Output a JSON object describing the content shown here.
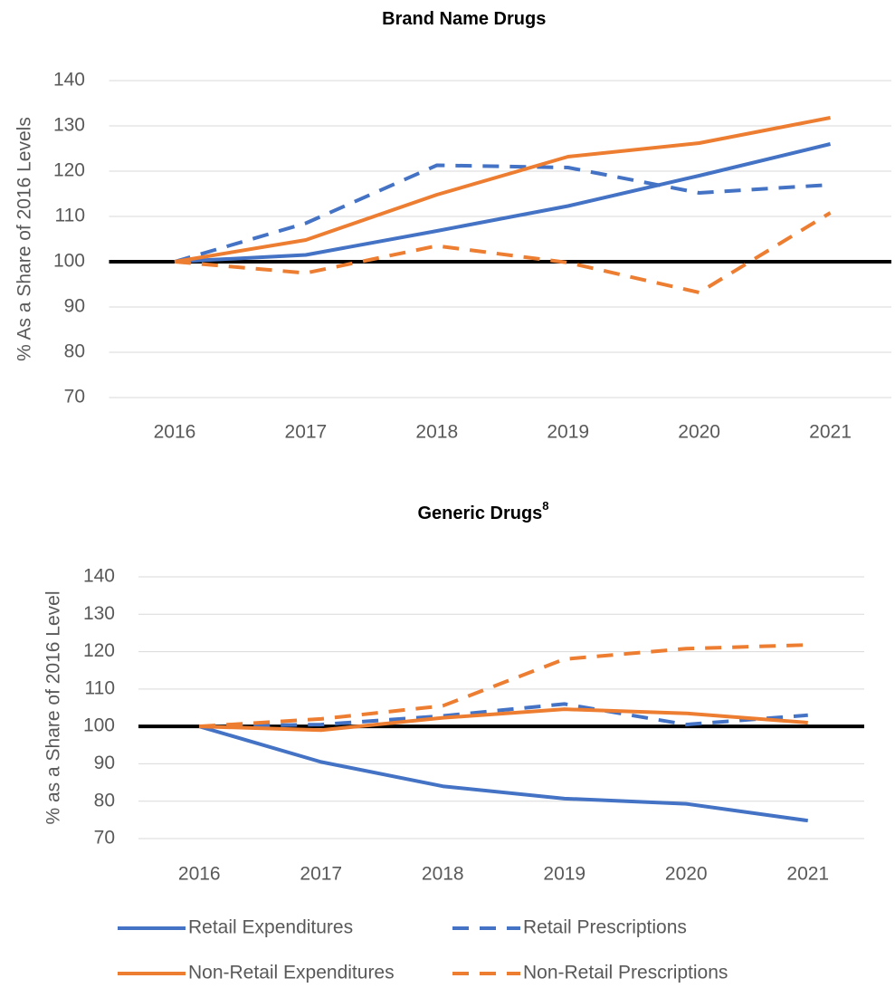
{
  "chart_data": [
    {
      "type": "line",
      "title": "Brand Name Drugs",
      "y_label": "% As a Share of 2016 Levels",
      "categories": [
        "2016",
        "2017",
        "2018",
        "2019",
        "2020",
        "2021"
      ],
      "ylim": [
        70,
        140
      ],
      "yticks": [
        70,
        80,
        90,
        100,
        110,
        120,
        130,
        140
      ],
      "grid": true,
      "reference_line": 100,
      "series": [
        {
          "color": "#4472c4",
          "dashed": false,
          "values": [
            100,
            101.5,
            106.8,
            112.3,
            119,
            126
          ]
        },
        {
          "color": "#4472c4",
          "dashed": true,
          "values": [
            100,
            108.5,
            121.3,
            120.8,
            115.2,
            117
          ]
        },
        {
          "color": "#ed7d31",
          "dashed": false,
          "values": [
            100,
            104.8,
            114.8,
            123.2,
            126.2,
            131.8
          ]
        },
        {
          "color": "#ed7d31",
          "dashed": true,
          "values": [
            100,
            97.5,
            103.5,
            99.8,
            93.2,
            110.8
          ]
        }
      ]
    },
    {
      "type": "line",
      "title": "Generic Drugs",
      "title_superscript": "8",
      "y_label": "% as a Share of 2016 Level",
      "categories": [
        "2016",
        "2017",
        "2018",
        "2019",
        "2020",
        "2021"
      ],
      "ylim": [
        70,
        140
      ],
      "yticks": [
        70,
        80,
        90,
        100,
        110,
        120,
        130,
        140
      ],
      "grid": true,
      "reference_line": 100,
      "series": [
        {
          "name": "Retail Expenditures",
          "color": "#4472c4",
          "dashed": false,
          "values": [
            100,
            90.5,
            84,
            80.7,
            79.3,
            74.8
          ]
        },
        {
          "name": "Retail Prescriptions",
          "color": "#4472c4",
          "dashed": true,
          "values": [
            100,
            100.5,
            102.8,
            106,
            100.5,
            103
          ]
        },
        {
          "name": "Non-Retail Expenditures",
          "color": "#ed7d31",
          "dashed": false,
          "values": [
            100,
            99,
            102.3,
            104.6,
            103.5,
            101
          ]
        },
        {
          "name": "Non-Retail Prescriptions",
          "color": "#ed7d31",
          "dashed": true,
          "values": [
            100,
            102,
            105.5,
            118,
            120.8,
            121.8
          ]
        }
      ]
    }
  ]
}
